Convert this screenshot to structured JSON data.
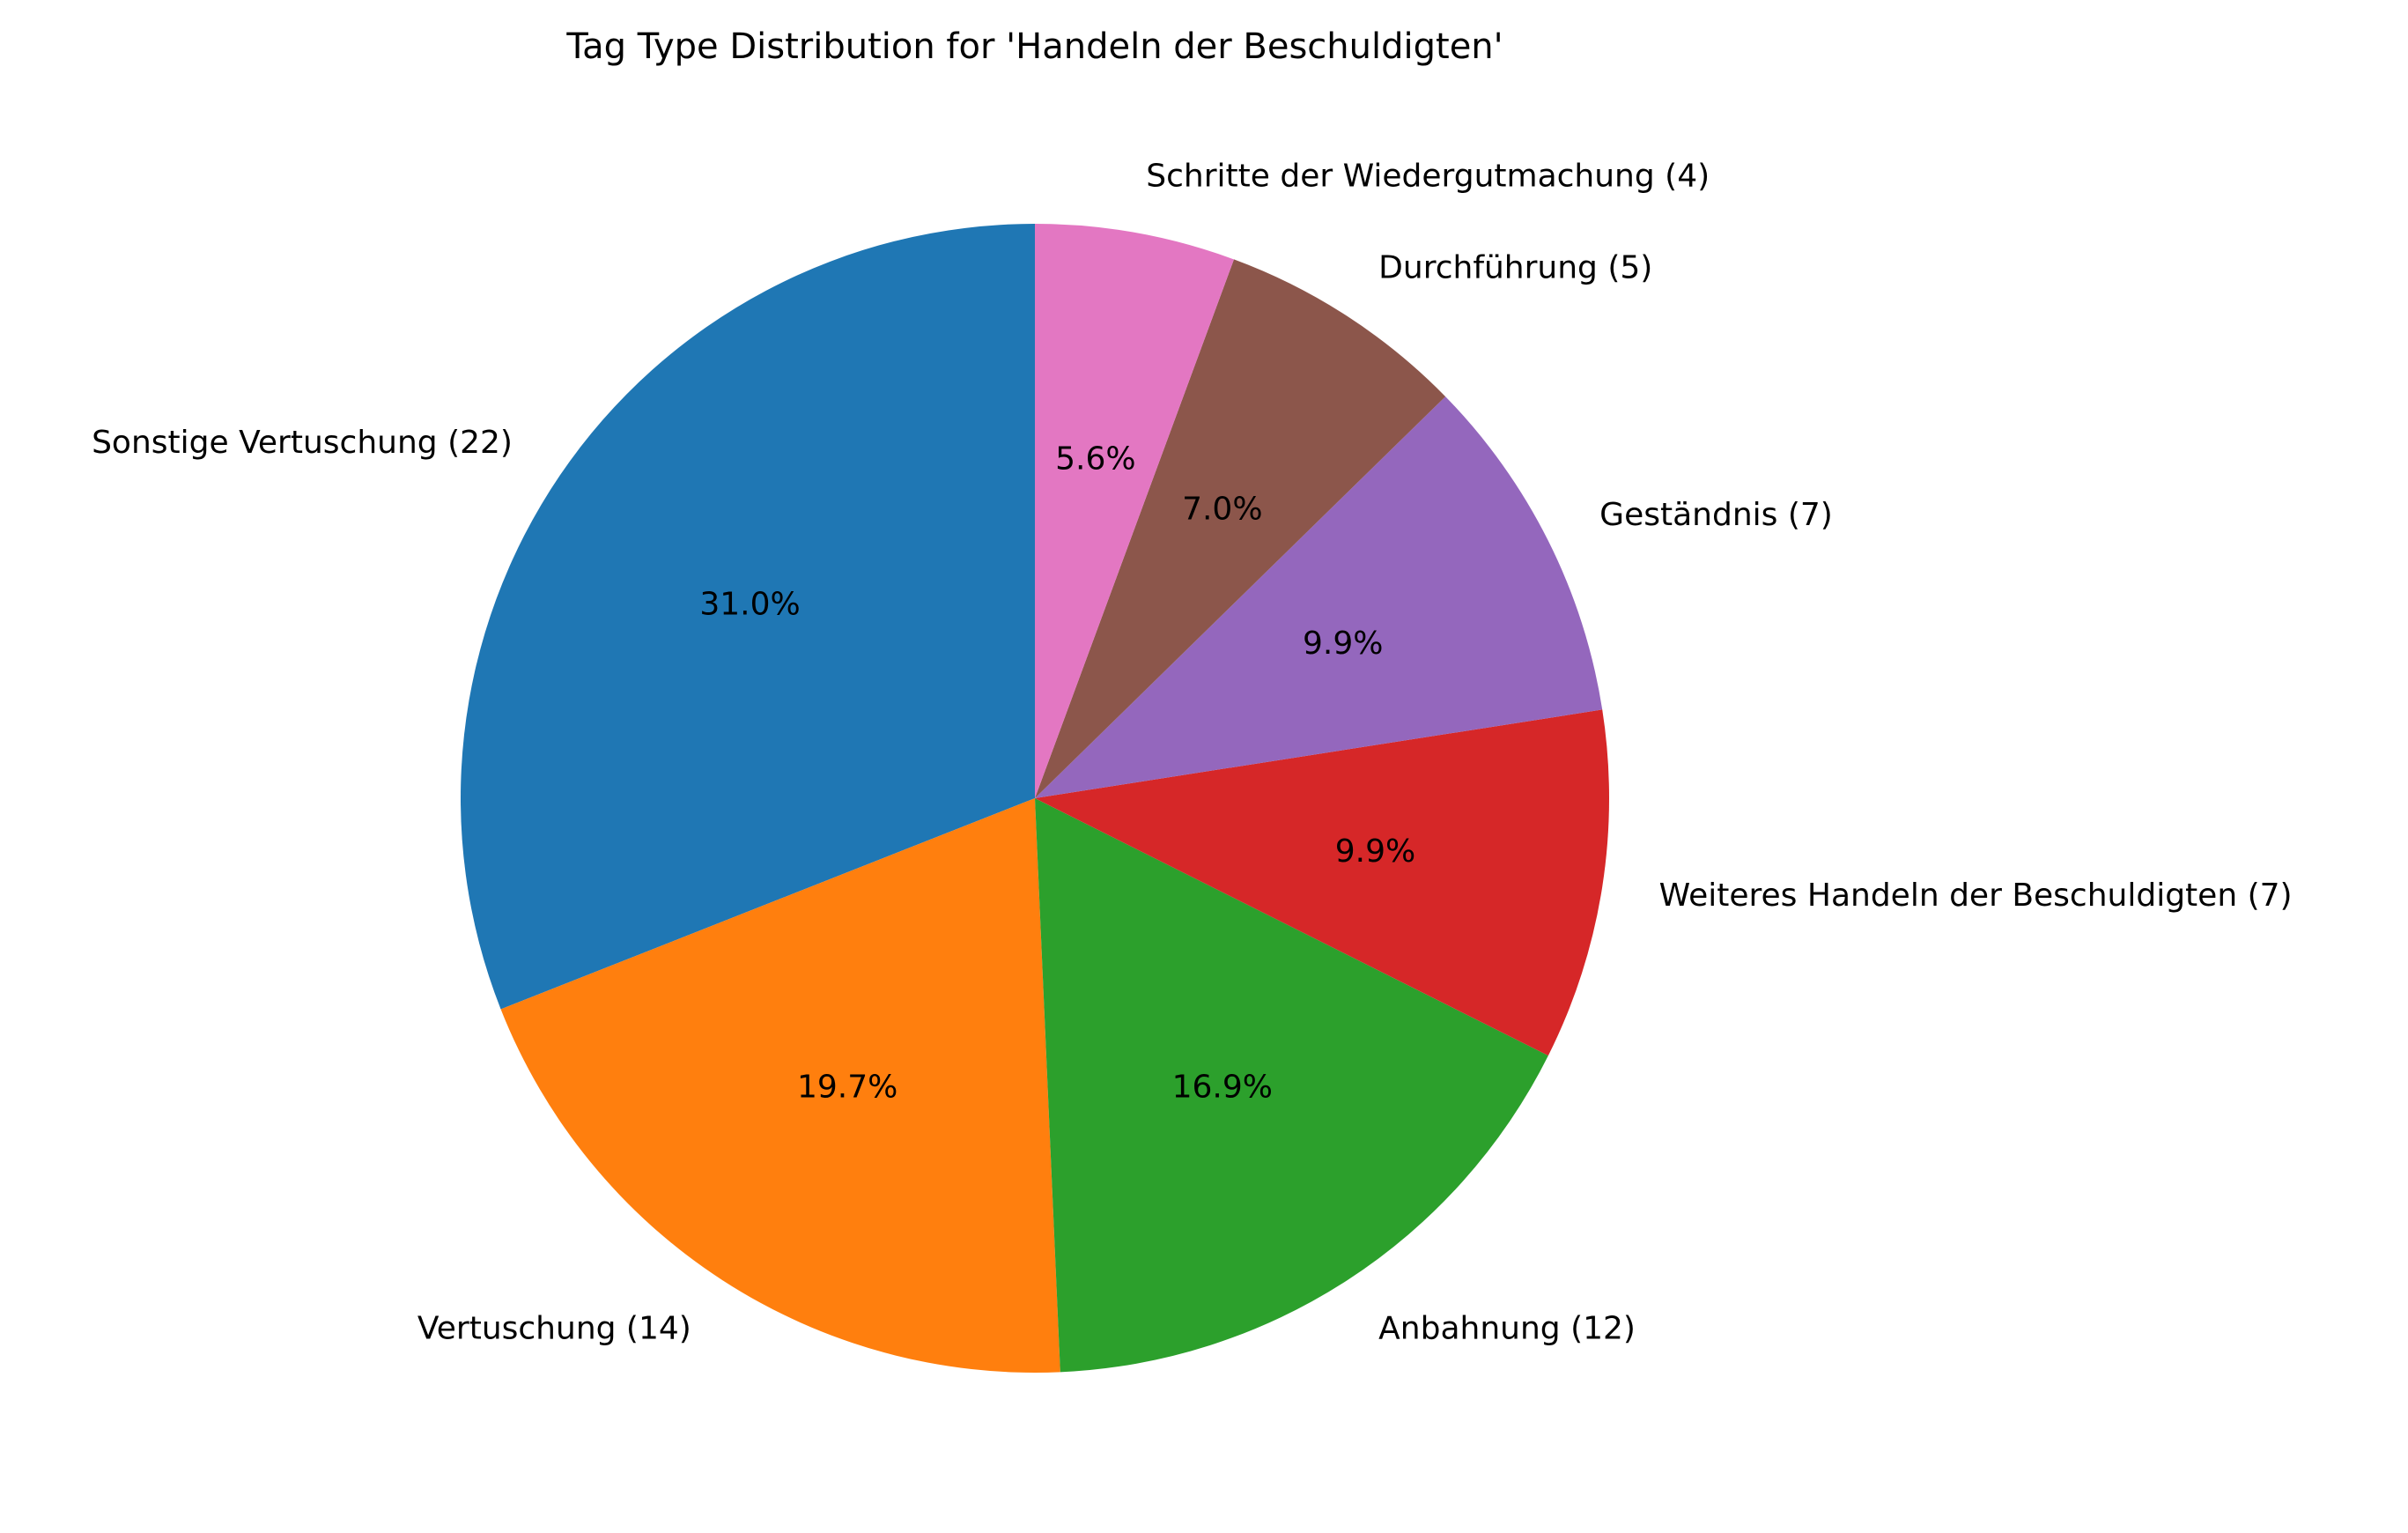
{
  "chart_data": {
    "type": "pie",
    "title": "Tag Type Distribution for 'Handeln der Beschuldigten'",
    "start_angle_deg": 90,
    "direction": "counterclockwise",
    "slices": [
      {
        "label": "Sonstige Vertuschung (22)",
        "value": 22,
        "percent_label": "31.0%",
        "color": "#1f77b4"
      },
      {
        "label": "Vertuschung (14)",
        "value": 14,
        "percent_label": "19.7%",
        "color": "#ff7f0e"
      },
      {
        "label": "Anbahnung (12)",
        "value": 12,
        "percent_label": "16.9%",
        "color": "#2ca02c"
      },
      {
        "label": "Weiteres Handeln der Beschuldigten (7)",
        "value": 7,
        "percent_label": "9.9%",
        "color": "#d62728"
      },
      {
        "label": "Geständnis (7)",
        "value": 7,
        "percent_label": "9.9%",
        "color": "#9467bd"
      },
      {
        "label": "Durchführung (5)",
        "value": 5,
        "percent_label": "7.0%",
        "color": "#8c564b"
      },
      {
        "label": "Schritte der Wiedergutmachung (4)",
        "value": 4,
        "percent_label": "5.6%",
        "color": "#e377c2"
      }
    ]
  }
}
